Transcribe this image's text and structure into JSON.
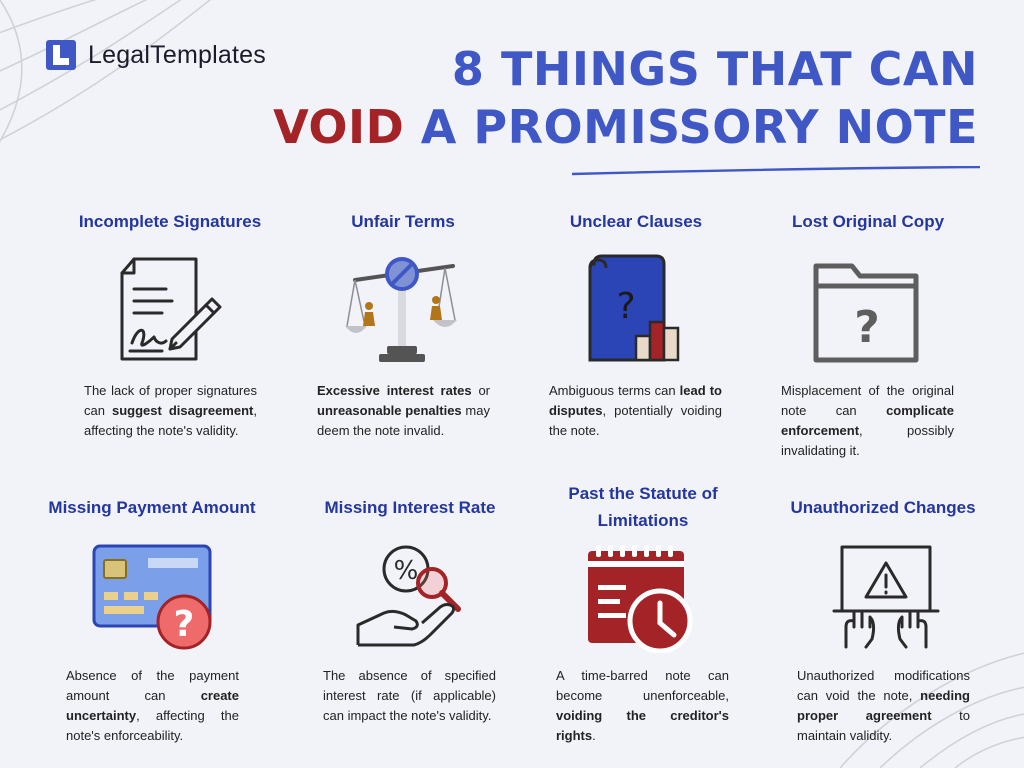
{
  "brand": {
    "name": "LegalTemplates",
    "icon": "legaltemplates-logo-icon"
  },
  "title": {
    "line1": "8 THINGS THAT CAN",
    "line2_accent": "VOID",
    "line2_rest": " A PROMISSORY NOTE"
  },
  "colors": {
    "primary": "#3f58c6",
    "heading": "#2436a0",
    "accent": "#a32327",
    "background": "#f2f3f9"
  },
  "cards": [
    {
      "heading": "Incomplete Signatures",
      "icon": "contract-signature-icon",
      "desc": [
        {
          "t": "The lack of proper signatures can ",
          "b": false
        },
        {
          "t": "suggest disagreement",
          "b": true
        },
        {
          "t": ", affecting the note's validity.",
          "b": false
        }
      ]
    },
    {
      "heading": "Unfair Terms",
      "icon": "unbalanced-scale-icon",
      "desc": [
        {
          "t": "Excessive interest rates",
          "b": true
        },
        {
          "t": " or ",
          "b": false
        },
        {
          "t": "unreasonable penalties",
          "b": true
        },
        {
          "t": " may deem the note invalid.",
          "b": false
        }
      ]
    },
    {
      "heading": "Unclear Clauses",
      "icon": "question-document-icon",
      "desc": [
        {
          "t": "Ambiguous terms can ",
          "b": false
        },
        {
          "t": "lead to disputes",
          "b": true
        },
        {
          "t": ", potentially voiding the note.",
          "b": false
        }
      ]
    },
    {
      "heading": "Lost Original Copy",
      "icon": "folder-question-icon",
      "desc": [
        {
          "t": "Misplacement of the original note can ",
          "b": false
        },
        {
          "t": "complicate enforcement",
          "b": true
        },
        {
          "t": ", possibly invalidating it.",
          "b": false
        }
      ]
    },
    {
      "heading": "Missing Payment Amount",
      "icon": "credit-card-question-icon",
      "desc": [
        {
          "t": "Absence of the payment amount can ",
          "b": false
        },
        {
          "t": "create uncertainty",
          "b": true
        },
        {
          "t": ", affecting the note's enforceability.",
          "b": false
        }
      ]
    },
    {
      "heading": "Missing Interest Rate",
      "icon": "percent-magnifier-hand-icon",
      "desc": [
        {
          "t": "The absence of specified interest rate (if applicable) can impact the note's validity.",
          "b": false
        }
      ]
    },
    {
      "heading": "Past the Statute of Limitations",
      "icon": "calendar-clock-icon",
      "desc": [
        {
          "t": "A time-barred note can become unenforceable, ",
          "b": false
        },
        {
          "t": "voiding the creditor's rights",
          "b": true
        },
        {
          "t": ".",
          "b": false
        }
      ]
    },
    {
      "heading": "Unauthorized Changes",
      "icon": "laptop-warning-icon",
      "desc": [
        {
          "t": "Unauthorized modifications can void the note, ",
          "b": false
        },
        {
          "t": "needing proper agreement",
          "b": true
        },
        {
          "t": " to maintain validity.",
          "b": false
        }
      ]
    }
  ]
}
